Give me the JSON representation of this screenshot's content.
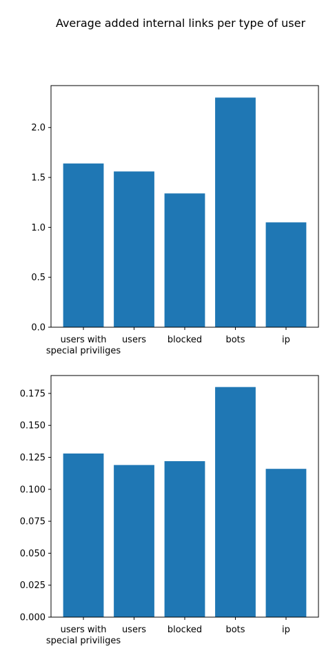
{
  "figure": {
    "title": "Average added internal links per type of user"
  },
  "chart_data": [
    {
      "type": "bar",
      "categories": [
        [
          "users with",
          "special priviliges"
        ],
        [
          "users"
        ],
        [
          "blocked"
        ],
        [
          "bots"
        ],
        [
          "ip"
        ]
      ],
      "values": [
        1.64,
        1.56,
        1.34,
        2.3,
        1.05
      ],
      "ylim": [
        0,
        2.42
      ],
      "yticks": [
        "0.0",
        "0.5",
        "1.0",
        "1.5",
        "2.0"
      ],
      "ytick_values": [
        0,
        0.5,
        1.0,
        1.5,
        2.0
      ],
      "bar_color": "#1f77b4",
      "grid": false
    },
    {
      "type": "bar",
      "categories": [
        [
          "users with",
          "special priviliges"
        ],
        [
          "users"
        ],
        [
          "blocked"
        ],
        [
          "bots"
        ],
        [
          "ip"
        ]
      ],
      "values": [
        0.128,
        0.119,
        0.122,
        0.18,
        0.116
      ],
      "ylim": [
        0,
        0.189
      ],
      "yticks": [
        "0.000",
        "0.025",
        "0.050",
        "0.075",
        "0.100",
        "0.125",
        "0.150",
        "0.175"
      ],
      "ytick_values": [
        0,
        0.025,
        0.05,
        0.075,
        0.1,
        0.125,
        0.15,
        0.175
      ],
      "bar_color": "#1f77b4",
      "grid": false
    }
  ]
}
